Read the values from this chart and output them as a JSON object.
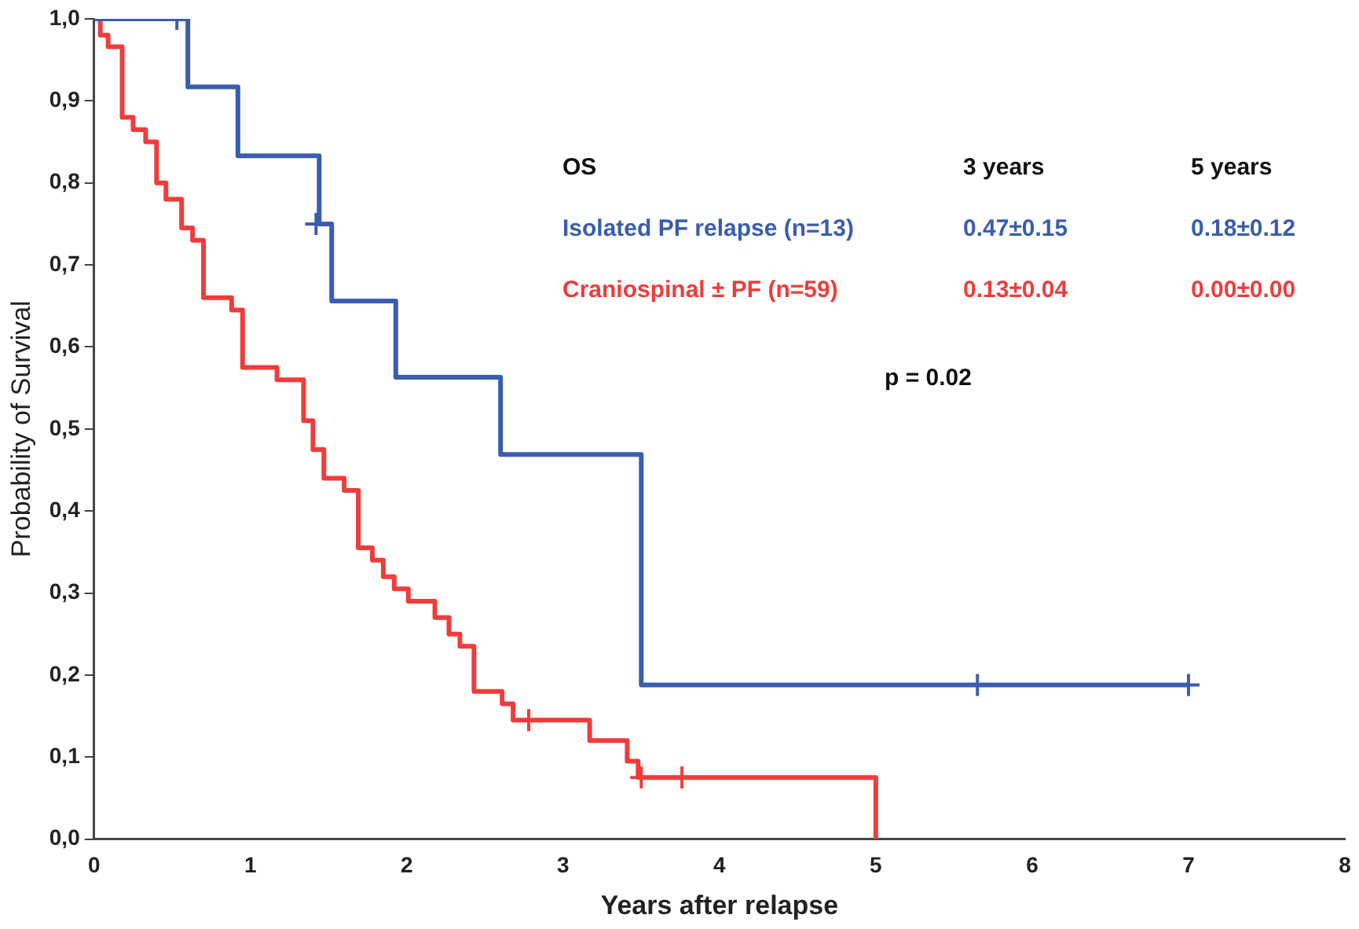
{
  "chart_data": {
    "type": "step",
    "xlabel": "Years after relapse",
    "ylabel": "Probability of Survival",
    "xlim": [
      0,
      8
    ],
    "xticks": [
      0,
      1,
      2,
      3,
      4,
      5,
      6,
      7,
      8
    ],
    "ylim": [
      0,
      1
    ],
    "yticks": [
      {
        "value": 0,
        "label": "0,0"
      },
      {
        "value": 0.1,
        "label": "0,1"
      },
      {
        "value": 0.2,
        "label": "0,2"
      },
      {
        "value": 0.3,
        "label": "0,3"
      },
      {
        "value": 0.4,
        "label": "0,4"
      },
      {
        "value": 0.5,
        "label": "0,5"
      },
      {
        "value": 0.6,
        "label": "0,6"
      },
      {
        "value": 0.7,
        "label": "0,7"
      },
      {
        "value": 0.8,
        "label": "0,8"
      },
      {
        "value": 0.9,
        "label": "0,9"
      },
      {
        "value": 1,
        "label": "1,0"
      }
    ],
    "grid": false,
    "marker": "none",
    "line_style": "solid",
    "series": [
      {
        "name": "Isolated PF relapse (n=13)",
        "color": "#3a5dae",
        "x": [
          0,
          0.6,
          0.92,
          1.44,
          1.52,
          1.93,
          2.6,
          3.5,
          7.0
        ],
        "values": [
          1,
          0.917,
          0.833,
          0.75,
          0.656,
          0.563,
          0.469,
          0.188,
          0.188
        ]
      },
      {
        "name": "Craniospinal ± PF (n=59)",
        "color": "#f03c3c",
        "x": [
          0,
          0.04,
          0.09,
          0.18,
          0.25,
          0.33,
          0.4,
          0.46,
          0.56,
          0.63,
          0.7,
          0.88,
          0.95,
          1.17,
          1.34,
          1.4,
          1.47,
          1.6,
          1.69,
          1.78,
          1.85,
          1.92,
          2.01,
          2.18,
          2.27,
          2.34,
          2.43,
          2.61,
          2.68,
          3.17,
          3.41,
          3.48,
          5.0,
          5.0
        ],
        "values": [
          1,
          0.98,
          0.966,
          0.88,
          0.865,
          0.85,
          0.8,
          0.78,
          0.745,
          0.73,
          0.66,
          0.645,
          0.575,
          0.56,
          0.51,
          0.475,
          0.44,
          0.425,
          0.355,
          0.34,
          0.32,
          0.305,
          0.29,
          0.27,
          0.25,
          0.235,
          0.18,
          0.165,
          0.145,
          0.12,
          0.095,
          0.075,
          0.075,
          0
        ]
      },
      {
        "type": "scatter",
        "marker": "cross",
        "color": "#3a5dae",
        "x": [
          0.53,
          1.42,
          5.65,
          7.0
        ],
        "values": [
          1,
          0.75,
          0.188,
          0.188
        ]
      },
      {
        "type": "scatter",
        "marker": "cross",
        "color": "#f03c3c",
        "x": [
          2.78,
          3.5,
          3.76
        ],
        "values": [
          0.145,
          0.075,
          0.075
        ]
      }
    ],
    "annotations": [
      "OS",
      "3 years",
      "5 years",
      "0.47±0.15",
      "0.18±0.12",
      "0.13±0.04",
      "0.00±0.00",
      "p = 0.02"
    ]
  }
}
